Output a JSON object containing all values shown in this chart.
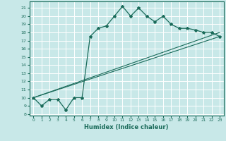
{
  "xlabel": "Humidex (Indice chaleur)",
  "ylabel": "",
  "bg_color": "#c8e8e8",
  "grid_color": "#ffffff",
  "line_color": "#1a6b5a",
  "xlim": [
    -0.5,
    23.5
  ],
  "ylim": [
    7.8,
    21.8
  ],
  "xticks": [
    0,
    1,
    2,
    3,
    4,
    5,
    6,
    7,
    8,
    9,
    10,
    11,
    12,
    13,
    14,
    15,
    16,
    17,
    18,
    19,
    20,
    21,
    22,
    23
  ],
  "yticks": [
    8,
    9,
    10,
    11,
    12,
    13,
    14,
    15,
    16,
    17,
    18,
    19,
    20,
    21
  ],
  "curve_x": [
    0,
    1,
    2,
    3,
    4,
    5,
    6,
    7,
    8,
    9,
    10,
    11,
    12,
    13,
    14,
    15,
    16,
    17,
    18,
    19,
    20,
    21,
    22,
    23
  ],
  "curve_y": [
    10.0,
    9.0,
    9.8,
    9.8,
    8.5,
    10.0,
    10.0,
    17.5,
    18.5,
    18.8,
    20.0,
    21.2,
    20.0,
    21.0,
    20.0,
    19.3,
    20.0,
    19.0,
    18.5,
    18.5,
    18.3,
    18.0,
    18.0,
    17.5
  ],
  "line1_x": [
    0,
    23
  ],
  "line1_y": [
    10.0,
    17.5
  ],
  "line2_x": [
    0,
    23
  ],
  "line2_y": [
    10.0,
    18.0
  ],
  "marker": "*",
  "marker_size": 3
}
